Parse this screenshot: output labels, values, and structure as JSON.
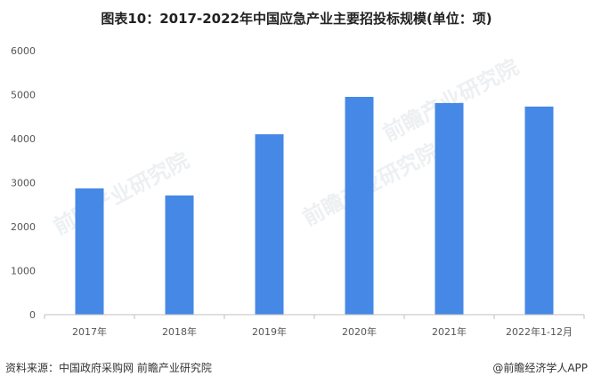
{
  "title": "图表10：2017-2022年中国应急产业主要招投标规模(单位：项)",
  "footer": {
    "source": "资料来源：中国政府采购网 前瞻产业研究院",
    "credit": "@前瞻经济学人APP"
  },
  "watermark": "前瞻产业研究院",
  "chart_data": {
    "type": "bar",
    "categories": [
      "2017年",
      "2018年",
      "2019年",
      "2020年",
      "2021年",
      "2022年1-12月"
    ],
    "values": [
      2870,
      2710,
      4100,
      4950,
      4810,
      4730
    ],
    "ylim": [
      0,
      6000
    ],
    "yticks": [
      0,
      1000,
      2000,
      3000,
      4000,
      5000,
      6000
    ],
    "grid": false,
    "legend": "none",
    "bar_color": "#4688e6",
    "axis_color": "#bfbfbf",
    "tick_label_color": "#555555"
  }
}
